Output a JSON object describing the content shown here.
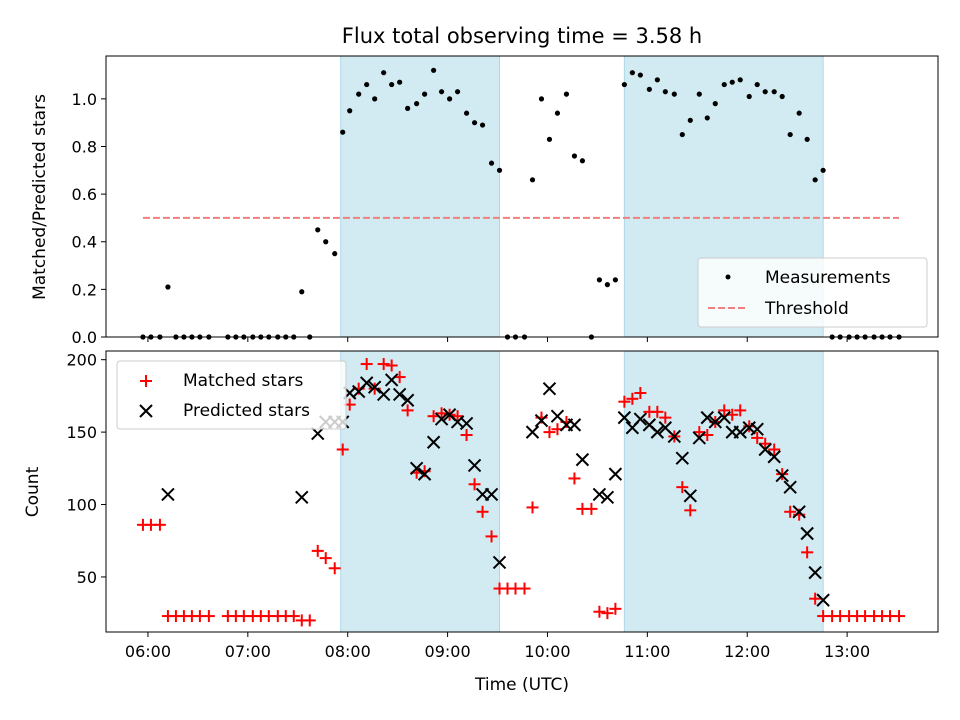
{
  "chart_data": [
    {
      "type": "scatter",
      "title": "Flux total observing time = 3.58 h",
      "ylabel": "Matched/Predicted stars",
      "xlabel": "",
      "ylim": [
        0,
        1.18
      ],
      "yticks": [
        "0.0",
        "0.2",
        "0.4",
        "0.6",
        "0.8",
        "1.0"
      ],
      "ytick_values": [
        0,
        0.2,
        0.4,
        0.6,
        0.8,
        1.0
      ],
      "xlim_hours": [
        5.58,
        13.91
      ],
      "shaded_intervals": [
        [
          7.93,
          9.52
        ],
        [
          10.77,
          12.76
        ]
      ],
      "shade_color": "#add8e6",
      "threshold": {
        "name": "Threshold",
        "value": 0.5,
        "x_start": 5.95,
        "x_end": 13.52,
        "color": "#f08080"
      },
      "legend": {
        "placement": "lower right",
        "entries": [
          "Measurements",
          "Threshold"
        ]
      },
      "series": [
        {
          "name": "Measurements",
          "color": "#000000",
          "marker": "dot",
          "points": [
            [
              5.95,
              0
            ],
            [
              6.03,
              0
            ],
            [
              6.12,
              0
            ],
            [
              6.2,
              0.21
            ],
            [
              6.28,
              0
            ],
            [
              6.36,
              0
            ],
            [
              6.44,
              0
            ],
            [
              6.52,
              0
            ],
            [
              6.61,
              0
            ],
            [
              6.8,
              0
            ],
            [
              6.88,
              0
            ],
            [
              6.96,
              0
            ],
            [
              7.05,
              0
            ],
            [
              7.13,
              0
            ],
            [
              7.21,
              0
            ],
            [
              7.3,
              0
            ],
            [
              7.38,
              0
            ],
            [
              7.46,
              0
            ],
            [
              7.54,
              0.19
            ],
            [
              7.62,
              0
            ],
            [
              7.7,
              0.45
            ],
            [
              7.78,
              0.4
            ],
            [
              7.87,
              0.35
            ],
            [
              7.95,
              0.86
            ],
            [
              8.02,
              0.95
            ],
            [
              8.11,
              1.02
            ],
            [
              8.19,
              1.06
            ],
            [
              8.27,
              1.0
            ],
            [
              8.36,
              1.11
            ],
            [
              8.44,
              1.06
            ],
            [
              8.52,
              1.07
            ],
            [
              8.6,
              0.96
            ],
            [
              8.69,
              0.98
            ],
            [
              8.77,
              1.02
            ],
            [
              8.86,
              1.12
            ],
            [
              8.94,
              1.03
            ],
            [
              9.02,
              1.0
            ],
            [
              9.1,
              1.03
            ],
            [
              9.19,
              0.94
            ],
            [
              9.27,
              0.9
            ],
            [
              9.35,
              0.89
            ],
            [
              9.44,
              0.73
            ],
            [
              9.52,
              0.7
            ],
            [
              9.6,
              0
            ],
            [
              9.68,
              0
            ],
            [
              9.77,
              0
            ],
            [
              9.85,
              0.66
            ],
            [
              9.94,
              1.0
            ],
            [
              10.02,
              0.83
            ],
            [
              10.1,
              0.94
            ],
            [
              10.19,
              1.02
            ],
            [
              10.27,
              0.76
            ],
            [
              10.35,
              0.74
            ],
            [
              10.44,
              0
            ],
            [
              10.52,
              0.24
            ],
            [
              10.6,
              0.22
            ],
            [
              10.68,
              0.24
            ],
            [
              10.77,
              1.06
            ],
            [
              10.85,
              1.11
            ],
            [
              10.93,
              1.1
            ],
            [
              11.02,
              1.04
            ],
            [
              11.1,
              1.08
            ],
            [
              11.18,
              1.03
            ],
            [
              11.27,
              1.02
            ],
            [
              11.35,
              0.85
            ],
            [
              11.43,
              0.91
            ],
            [
              11.52,
              1.02
            ],
            [
              11.6,
              0.92
            ],
            [
              11.68,
              0.98
            ],
            [
              11.77,
              1.06
            ],
            [
              11.85,
              1.07
            ],
            [
              11.93,
              1.08
            ],
            [
              12.02,
              1.01
            ],
            [
              12.1,
              1.06
            ],
            [
              12.18,
              1.03
            ],
            [
              12.27,
              1.03
            ],
            [
              12.35,
              1.01
            ],
            [
              12.43,
              0.85
            ],
            [
              12.52,
              0.94
            ],
            [
              12.6,
              0.83
            ],
            [
              12.68,
              0.66
            ],
            [
              12.76,
              0.7
            ],
            [
              12.85,
              0
            ],
            [
              12.93,
              0
            ],
            [
              13.02,
              0
            ],
            [
              13.1,
              0
            ],
            [
              13.18,
              0
            ],
            [
              13.27,
              0
            ],
            [
              13.35,
              0
            ],
            [
              13.43,
              0
            ],
            [
              13.52,
              0
            ]
          ]
        }
      ]
    },
    {
      "type": "scatter",
      "xlabel": "Time (UTC)",
      "ylabel": "Count",
      "ylim": [
        12,
        206
      ],
      "yticks": [
        "50",
        "100",
        "150",
        "200"
      ],
      "ytick_values": [
        50,
        100,
        150,
        200
      ],
      "xlim_hours": [
        5.58,
        13.91
      ],
      "xticks": [
        "06:00",
        "07:00",
        "08:00",
        "09:00",
        "10:00",
        "11:00",
        "12:00",
        "13:00"
      ],
      "xtick_values": [
        6,
        7,
        8,
        9,
        10,
        11,
        12,
        13
      ],
      "shaded_intervals": [
        [
          7.93,
          9.52
        ],
        [
          10.77,
          12.76
        ]
      ],
      "shade_color": "#add8e6",
      "legend": {
        "placement": "upper left",
        "entries": [
          "Matched stars",
          "Predicted stars"
        ]
      },
      "series": [
        {
          "name": "Matched stars",
          "color": "#ff0000",
          "marker": "plus",
          "points": [
            [
              5.95,
              86
            ],
            [
              6.03,
              86
            ],
            [
              6.12,
              86
            ],
            [
              6.2,
              23
            ],
            [
              6.28,
              23
            ],
            [
              6.36,
              23
            ],
            [
              6.44,
              23
            ],
            [
              6.52,
              23
            ],
            [
              6.61,
              23
            ],
            [
              6.8,
              23
            ],
            [
              6.88,
              23
            ],
            [
              6.96,
              23
            ],
            [
              7.05,
              23
            ],
            [
              7.13,
              23
            ],
            [
              7.21,
              23
            ],
            [
              7.3,
              23
            ],
            [
              7.38,
              23
            ],
            [
              7.46,
              23
            ],
            [
              7.54,
              20
            ],
            [
              7.62,
              20
            ],
            [
              7.7,
              68
            ],
            [
              7.78,
              63
            ],
            [
              7.87,
              56
            ],
            [
              7.95,
              138
            ],
            [
              8.02,
              169
            ],
            [
              8.11,
              180
            ],
            [
              8.19,
              197
            ],
            [
              8.27,
              180
            ],
            [
              8.36,
              197
            ],
            [
              8.44,
              196
            ],
            [
              8.52,
              188
            ],
            [
              8.6,
              165
            ],
            [
              8.69,
              122
            ],
            [
              8.77,
              123
            ],
            [
              8.86,
              161
            ],
            [
              8.94,
              163
            ],
            [
              9.02,
              162
            ],
            [
              9.1,
              161
            ],
            [
              9.19,
              148
            ],
            [
              9.27,
              114
            ],
            [
              9.35,
              95
            ],
            [
              9.44,
              78
            ],
            [
              9.52,
              42
            ],
            [
              9.6,
              42
            ],
            [
              9.68,
              42
            ],
            [
              9.77,
              42
            ],
            [
              9.85,
              98
            ],
            [
              9.94,
              160
            ],
            [
              10.02,
              150
            ],
            [
              10.1,
              152
            ],
            [
              10.19,
              157
            ],
            [
              10.27,
              118
            ],
            [
              10.35,
              97
            ],
            [
              10.44,
              97
            ],
            [
              10.52,
              26
            ],
            [
              10.6,
              25
            ],
            [
              10.68,
              28
            ],
            [
              10.77,
              171
            ],
            [
              10.85,
              173
            ],
            [
              10.93,
              177
            ],
            [
              11.02,
              164
            ],
            [
              11.1,
              164
            ],
            [
              11.18,
              160
            ],
            [
              11.27,
              147
            ],
            [
              11.35,
              112
            ],
            [
              11.43,
              96
            ],
            [
              11.52,
              150
            ],
            [
              11.6,
              148
            ],
            [
              11.68,
              157
            ],
            [
              11.77,
              165
            ],
            [
              11.85,
              162
            ],
            [
              11.93,
              165
            ],
            [
              12.02,
              154
            ],
            [
              12.1,
              146
            ],
            [
              12.18,
              142
            ],
            [
              12.27,
              138
            ],
            [
              12.35,
              121
            ],
            [
              12.43,
              95
            ],
            [
              12.52,
              93
            ],
            [
              12.6,
              67
            ],
            [
              12.68,
              35
            ],
            [
              12.76,
              23
            ],
            [
              12.85,
              23
            ],
            [
              12.93,
              23
            ],
            [
              13.02,
              23
            ],
            [
              13.1,
              23
            ],
            [
              13.18,
              23
            ],
            [
              13.27,
              23
            ],
            [
              13.35,
              23
            ],
            [
              13.43,
              23
            ],
            [
              13.52,
              23
            ]
          ]
        },
        {
          "name": "Predicted stars",
          "color": "#000000",
          "marker": "x",
          "points": [
            [
              6.2,
              107
            ],
            [
              7.54,
              105
            ],
            [
              7.7,
              149
            ],
            [
              7.78,
              157
            ],
            [
              7.87,
              157
            ],
            [
              7.95,
              157
            ],
            [
              8.02,
              177
            ],
            [
              8.11,
              178
            ],
            [
              8.19,
              184
            ],
            [
              8.27,
              181
            ],
            [
              8.36,
              176
            ],
            [
              8.44,
              186
            ],
            [
              8.52,
              176
            ],
            [
              8.6,
              172
            ],
            [
              8.69,
              125
            ],
            [
              8.77,
              121
            ],
            [
              8.86,
              143
            ],
            [
              8.94,
              159
            ],
            [
              9.02,
              162
            ],
            [
              9.1,
              157
            ],
            [
              9.19,
              156
            ],
            [
              9.27,
              127
            ],
            [
              9.35,
              107
            ],
            [
              9.44,
              107
            ],
            [
              9.52,
              60
            ],
            [
              9.85,
              150
            ],
            [
              9.94,
              158
            ],
            [
              10.02,
              180
            ],
            [
              10.1,
              161
            ],
            [
              10.19,
              155
            ],
            [
              10.27,
              155
            ],
            [
              10.35,
              131
            ],
            [
              10.52,
              107
            ],
            [
              10.6,
              105
            ],
            [
              10.68,
              121
            ],
            [
              10.77,
              160
            ],
            [
              10.85,
              153
            ],
            [
              10.93,
              159
            ],
            [
              11.02,
              155
            ],
            [
              11.1,
              150
            ],
            [
              11.18,
              153
            ],
            [
              11.27,
              147
            ],
            [
              11.35,
              132
            ],
            [
              11.43,
              106
            ],
            [
              11.52,
              146
            ],
            [
              11.6,
              160
            ],
            [
              11.68,
              157
            ],
            [
              11.77,
              160
            ],
            [
              11.85,
              150
            ],
            [
              11.93,
              150
            ],
            [
              12.02,
              153
            ],
            [
              12.1,
              152
            ],
            [
              12.18,
              138
            ],
            [
              12.27,
              133
            ],
            [
              12.35,
              120
            ],
            [
              12.43,
              112
            ],
            [
              12.52,
              95
            ],
            [
              12.6,
              80
            ],
            [
              12.68,
              53
            ],
            [
              12.76,
              34
            ]
          ]
        }
      ]
    }
  ]
}
